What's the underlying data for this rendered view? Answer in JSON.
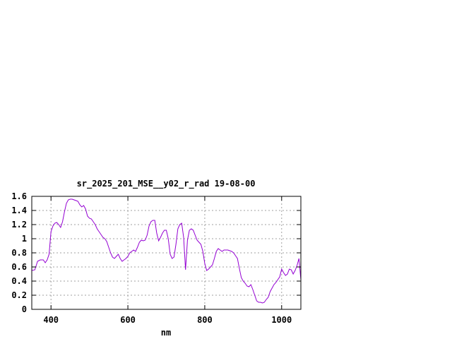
{
  "chart_data": {
    "type": "line",
    "title": "sr_2025_201_MSE__y02_r_rad 19-08-00",
    "xlabel": "nm",
    "ylabel": "",
    "xlim": [
      350,
      1050
    ],
    "ylim": [
      0,
      1.6
    ],
    "xticks": [
      400,
      600,
      800,
      1000
    ],
    "yticks": [
      0,
      0.2,
      0.4,
      0.6,
      0.8,
      1,
      1.2,
      1.4,
      1.6
    ],
    "xtick_labels": [
      "400",
      "600",
      "800",
      "1000"
    ],
    "ytick_labels": [
      "0",
      "0.2",
      "0.4",
      "0.6",
      "0.8",
      "1",
      "1.2",
      "1.4",
      "1.6"
    ],
    "grid": true,
    "series": [
      {
        "color": "#9400d3",
        "x": [
          350,
          358,
          365,
          372,
          380,
          385,
          390,
          395,
          400,
          405,
          410,
          415,
          420,
          425,
          430,
          435,
          440,
          445,
          450,
          455,
          460,
          465,
          470,
          475,
          480,
          485,
          490,
          495,
          500,
          505,
          510,
          515,
          520,
          525,
          530,
          535,
          540,
          545,
          550,
          555,
          560,
          565,
          570,
          575,
          580,
          585,
          590,
          595,
          600,
          605,
          610,
          615,
          620,
          625,
          630,
          635,
          640,
          645,
          650,
          655,
          660,
          665,
          670,
          675,
          680,
          685,
          690,
          695,
          700,
          705,
          710,
          715,
          720,
          725,
          730,
          735,
          740,
          745,
          750,
          755,
          760,
          765,
          770,
          775,
          780,
          785,
          790,
          795,
          800,
          805,
          810,
          815,
          820,
          825,
          830,
          835,
          840,
          845,
          850,
          855,
          860,
          865,
          870,
          875,
          880,
          885,
          890,
          895,
          900,
          905,
          910,
          915,
          920,
          925,
          930,
          935,
          940,
          945,
          950,
          955,
          960,
          965,
          970,
          975,
          980,
          985,
          990,
          995,
          1000,
          1005,
          1010,
          1015,
          1020,
          1025,
          1030,
          1035,
          1040,
          1045,
          1050
        ],
        "y": [
          0.55,
          0.56,
          0.68,
          0.7,
          0.7,
          0.66,
          0.7,
          0.78,
          1.1,
          1.18,
          1.22,
          1.23,
          1.2,
          1.16,
          1.24,
          1.38,
          1.5,
          1.55,
          1.56,
          1.56,
          1.55,
          1.54,
          1.53,
          1.48,
          1.45,
          1.47,
          1.42,
          1.32,
          1.29,
          1.28,
          1.24,
          1.2,
          1.14,
          1.1,
          1.06,
          1.02,
          1.0,
          0.96,
          0.88,
          0.8,
          0.74,
          0.72,
          0.75,
          0.78,
          0.72,
          0.68,
          0.7,
          0.72,
          0.75,
          0.8,
          0.82,
          0.84,
          0.82,
          0.88,
          0.95,
          0.98,
          0.97,
          0.98,
          1.05,
          1.18,
          1.24,
          1.26,
          1.26,
          1.08,
          0.97,
          1.02,
          1.08,
          1.12,
          1.12,
          1.0,
          0.78,
          0.72,
          0.74,
          0.92,
          1.14,
          1.2,
          1.22,
          1.02,
          0.56,
          0.98,
          1.12,
          1.14,
          1.12,
          1.05,
          0.98,
          0.95,
          0.92,
          0.82,
          0.65,
          0.55,
          0.57,
          0.6,
          0.63,
          0.72,
          0.82,
          0.86,
          0.84,
          0.82,
          0.84,
          0.84,
          0.84,
          0.83,
          0.82,
          0.8,
          0.76,
          0.72,
          0.58,
          0.45,
          0.4,
          0.37,
          0.33,
          0.32,
          0.35,
          0.28,
          0.2,
          0.12,
          0.1,
          0.1,
          0.09,
          0.1,
          0.14,
          0.17,
          0.25,
          0.3,
          0.35,
          0.38,
          0.42,
          0.46,
          0.57,
          0.52,
          0.48,
          0.5,
          0.57,
          0.56,
          0.5,
          0.55,
          0.62,
          0.72,
          0.42
        ]
      }
    ]
  }
}
